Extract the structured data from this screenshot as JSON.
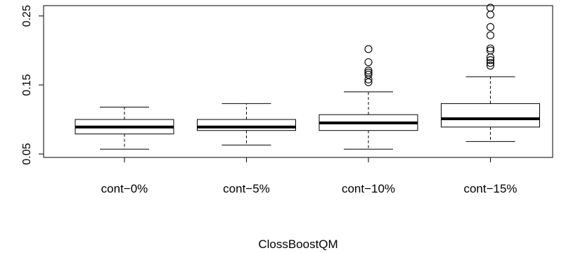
{
  "chart_data": {
    "type": "boxplot",
    "title": "",
    "xlabel": "ClossBoostQM",
    "ylabel": "",
    "ylim": [
      0.045,
      0.265
    ],
    "yticks": [
      0.05,
      0.15,
      0.25
    ],
    "ytick_labels": [
      "0.05",
      "0.15",
      "0.25"
    ],
    "categories": [
      "cont−0%",
      "cont−5%",
      "cont−10%",
      "cont−15%"
    ],
    "boxes": [
      {
        "whisker_low": 0.057,
        "q1": 0.079,
        "median": 0.089,
        "q3": 0.1,
        "whisker_high": 0.118,
        "outliers": []
      },
      {
        "whisker_low": 0.063,
        "q1": 0.084,
        "median": 0.089,
        "q3": 0.1,
        "whisker_high": 0.123,
        "outliers": []
      },
      {
        "whisker_low": 0.057,
        "q1": 0.084,
        "median": 0.095,
        "q3": 0.107,
        "whisker_high": 0.14,
        "outliers": [
          0.154,
          0.158,
          0.165,
          0.168,
          0.171,
          0.183,
          0.202
        ]
      },
      {
        "whisker_low": 0.068,
        "q1": 0.089,
        "median": 0.101,
        "q3": 0.123,
        "whisker_high": 0.162,
        "outliers": [
          0.178,
          0.182,
          0.186,
          0.19,
          0.2,
          0.203,
          0.222,
          0.234,
          0.252,
          0.262
        ]
      }
    ],
    "grid": false,
    "legend": "none"
  }
}
